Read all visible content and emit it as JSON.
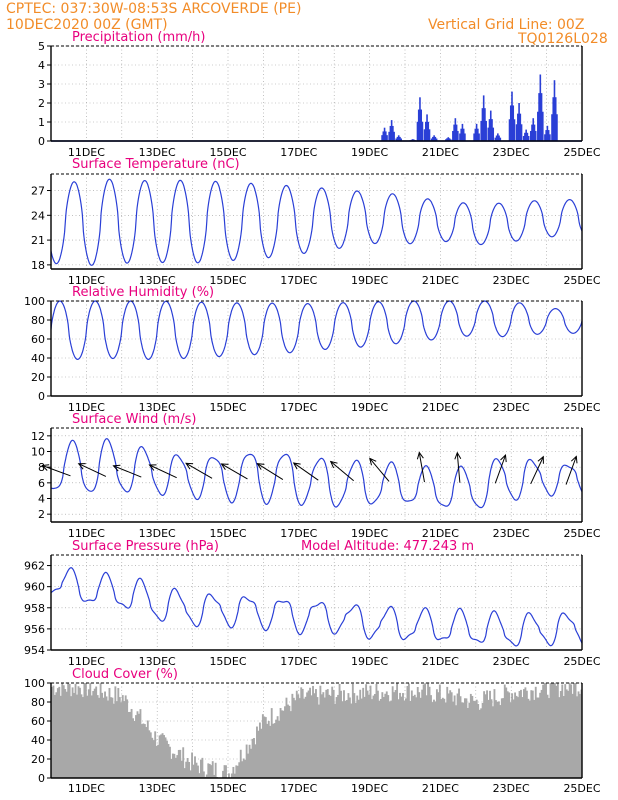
{
  "header": {
    "line1": "CPTEC:  037:30W-08:53S  ARCOVERDE (PE)",
    "line2": "10DEC2020 00Z (GMT)",
    "grid_note": "Vertical Grid Line: 00Z",
    "run_code": "TQ0126L028"
  },
  "colors": {
    "header": "#f28c28",
    "title": "#e8007e",
    "line": "#2a3fd6",
    "cloud": "#a8a8a8",
    "wind_arrow": "#000000",
    "frame": "#000000",
    "grid": "#9a9a9a"
  },
  "chart_data": [
    {
      "type": "bar",
      "title": "Precipitation (mm/h)",
      "x_ticks": [
        "11DEC",
        "13DEC",
        "15DEC",
        "17DEC",
        "19DEC",
        "21DEC",
        "23DEC",
        "25DEC"
      ],
      "ylim": [
        0,
        5
      ],
      "yticks": [
        0,
        1,
        2,
        3,
        4,
        5
      ],
      "grid": true,
      "series": [
        {
          "x": [
            9.4,
            9.6,
            9.8,
            10.0,
            10.2,
            10.4,
            10.6,
            10.8,
            11.0,
            11.2,
            11.4,
            11.6,
            11.8,
            12.0,
            12.2,
            12.4,
            12.6,
            12.8,
            13.0,
            13.2,
            13.4,
            13.6,
            13.8,
            14.0,
            14.2
          ],
          "values": [
            0.7,
            1.1,
            0.3,
            0.0,
            0.1,
            2.3,
            1.4,
            0.3,
            0.0,
            0.2,
            1.2,
            0.9,
            0.0,
            0.9,
            2.4,
            1.6,
            0.4,
            0.0,
            2.6,
            2.0,
            0.6,
            1.2,
            3.5,
            0.8,
            3.2
          ]
        }
      ]
    },
    {
      "type": "line",
      "title": "Surface Temperature (nC)",
      "x_ticks": [
        "11DEC",
        "13DEC",
        "15DEC",
        "17DEC",
        "19DEC",
        "21DEC",
        "23DEC",
        "25DEC"
      ],
      "ylim": [
        17.5,
        29
      ],
      "yticks": [
        18,
        21,
        24,
        27
      ],
      "grid": true,
      "daily_max": [
        27.6,
        28.3,
        28.4,
        28.1,
        28.3,
        28.0,
        27.8,
        27.5,
        27.2,
        26.8,
        26.5,
        25.7,
        25.4,
        25.5,
        25.9
      ],
      "daily_min": [
        18.2,
        17.9,
        18.2,
        18.3,
        18.2,
        18.5,
        18.8,
        19.3,
        19.9,
        20.6,
        20.5,
        20.9,
        20.4,
        20.8,
        21.4
      ]
    },
    {
      "type": "line",
      "title": "Relative Humidity (%)",
      "x_ticks": [
        "11DEC",
        "13DEC",
        "15DEC",
        "17DEC",
        "19DEC",
        "21DEC",
        "23DEC",
        "25DEC"
      ],
      "ylim": [
        0,
        100
      ],
      "yticks": [
        0,
        20,
        40,
        60,
        80,
        100
      ],
      "grid": true,
      "daily_max": [
        100,
        100,
        100,
        100,
        99,
        98,
        98,
        97,
        98,
        99,
        100,
        100,
        100,
        100,
        92
      ],
      "daily_min": [
        40,
        38,
        40,
        38,
        40,
        42,
        44,
        46,
        50,
        52,
        56,
        60,
        64,
        62,
        66
      ]
    },
    {
      "type": "line",
      "title": "Surface Wind (m/s)",
      "x_ticks": [
        "11DEC",
        "13DEC",
        "15DEC",
        "17DEC",
        "19DEC",
        "21DEC",
        "23DEC",
        "25DEC"
      ],
      "ylim": [
        1,
        13
      ],
      "yticks": [
        2,
        4,
        6,
        8,
        10,
        12
      ],
      "grid": true,
      "daily_max": [
        10.0,
        11.8,
        11.0,
        10.0,
        9.2,
        9.6,
        10.2,
        9.6,
        8.8,
        8.6,
        8.2,
        7.6,
        8.0,
        9.6,
        8.4
      ],
      "daily_min": [
        5.0,
        4.6,
        4.8,
        4.6,
        4.2,
        3.8,
        3.6,
        3.4,
        3.0,
        3.2,
        3.4,
        2.8,
        2.6,
        3.8,
        4.6
      ],
      "arrow_directions_deg": [
        160,
        155,
        158,
        155,
        150,
        150,
        148,
        145,
        140,
        130,
        100,
        95,
        70,
        65,
        70
      ]
    },
    {
      "type": "line",
      "title": "Surface Pressure (hPa)",
      "subtitle": "Model Altitude: 477.243 m",
      "x_ticks": [
        "11DEC",
        "13DEC",
        "15DEC",
        "17DEC",
        "19DEC",
        "21DEC",
        "23DEC",
        "25DEC"
      ],
      "ylim": [
        954,
        963
      ],
      "yticks": [
        954,
        956,
        958,
        960,
        962
      ],
      "grid": true,
      "daily_max": [
        962.1,
        961.0,
        961.0,
        960.0,
        959.2,
        959.2,
        959.0,
        958.8,
        958.4,
        958.0,
        957.8,
        957.6,
        957.6,
        957.2,
        957.4
      ],
      "daily_min": [
        959.4,
        958.4,
        958.0,
        956.8,
        956.4,
        956.4,
        956.2,
        955.8,
        955.8,
        955.2,
        955.0,
        954.8,
        954.6,
        954.4,
        954.6
      ]
    },
    {
      "type": "area",
      "title": "Cloud Cover (%)",
      "x_ticks": [
        "11DEC",
        "13DEC",
        "15DEC",
        "17DEC",
        "19DEC",
        "21DEC",
        "23DEC",
        "25DEC"
      ],
      "ylim": [
        0,
        100
      ],
      "yticks": [
        0,
        20,
        40,
        60,
        80,
        100
      ],
      "grid": true,
      "daily_values": [
        96,
        95,
        85,
        40,
        15,
        5,
        60,
        85,
        88,
        90,
        92,
        88,
        80,
        90,
        95,
        97
      ]
    }
  ]
}
